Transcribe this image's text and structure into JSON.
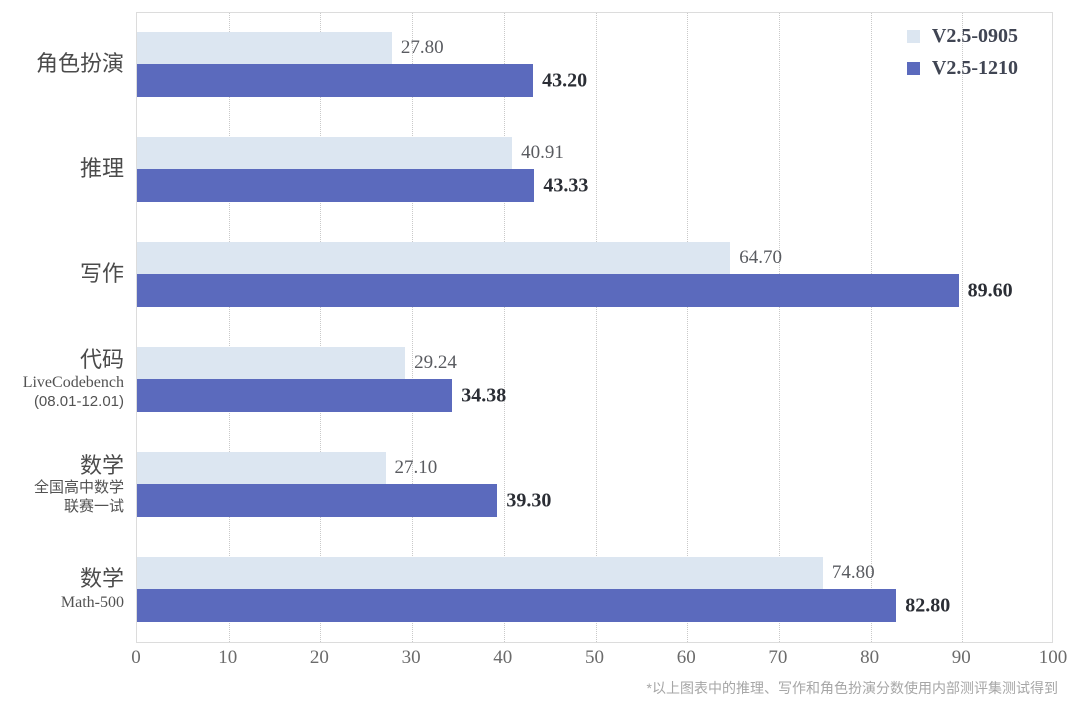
{
  "legend": {
    "items": [
      {
        "label": "V2.5-0905",
        "color": "#dce6f1"
      },
      {
        "label": "V2.5-1210",
        "color": "#5b6abd"
      }
    ]
  },
  "footnote": "*以上图表中的推理、写作和角色扮演分数使用内部测评集测试得到",
  "colors": {
    "series_light": "#dce6f1",
    "series_dark": "#5b6abd",
    "grid": "#c9c9c9",
    "plot_border": "#dcdcdc"
  },
  "chart_data": {
    "type": "bar",
    "orientation": "horizontal",
    "title": "",
    "xlabel": "",
    "ylabel": "",
    "xlim": [
      0,
      100
    ],
    "xticks": [
      0,
      10,
      20,
      30,
      40,
      50,
      60,
      70,
      80,
      90,
      100
    ],
    "grid": "vertical-dotted",
    "legend_position": "top-right",
    "value_label_format": "2-decimals",
    "categories": [
      {
        "label": "角色扮演",
        "sublabel_lines": []
      },
      {
        "label": "推理",
        "sublabel_lines": []
      },
      {
        "label": "写作",
        "sublabel_lines": []
      },
      {
        "label": "代码",
        "sublabel_lines": [
          "LiveCodebench",
          "(08.01-12.01)"
        ]
      },
      {
        "label": "数学",
        "sublabel_lines": [
          "全国高中数学",
          "联赛一试"
        ]
      },
      {
        "label": "数学",
        "sublabel_lines": [
          "Math-500"
        ]
      }
    ],
    "series": [
      {
        "name": "V2.5-0905",
        "color": "#dce6f1",
        "bold_labels": false,
        "values": [
          27.8,
          40.91,
          64.7,
          29.24,
          27.1,
          74.8
        ]
      },
      {
        "name": "V2.5-1210",
        "color": "#5b6abd",
        "bold_labels": true,
        "values": [
          43.2,
          43.33,
          89.6,
          34.38,
          39.3,
          82.8
        ]
      }
    ]
  }
}
